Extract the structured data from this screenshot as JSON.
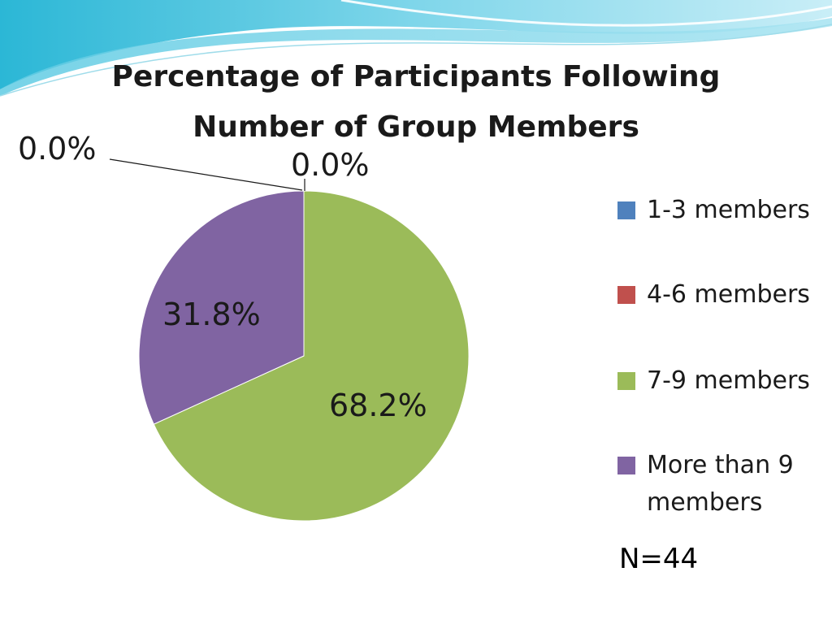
{
  "chart_data": {
    "type": "pie",
    "title_lines": [
      "Percentage of Participants Following",
      "Number of Group Members"
    ],
    "categories": [
      "1-3 members",
      "4-6 members",
      "7-9 members",
      "More than 9 members"
    ],
    "values": [
      0.0,
      0.0,
      68.2,
      31.8
    ],
    "data_labels": [
      "0.0%",
      "0.0%",
      "68.2%",
      "31.8%"
    ],
    "colors": [
      "#4f81bd",
      "#c0504d",
      "#9bbb59",
      "#8064a2"
    ],
    "legend_position": "right"
  },
  "note": "N=44"
}
